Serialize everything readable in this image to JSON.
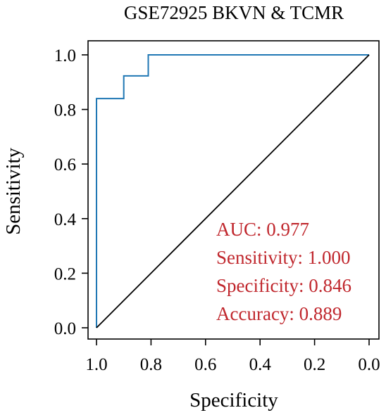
{
  "chart_data": {
    "type": "line",
    "title": "GSE72925 BKVN & TCMR",
    "xlabel": "Specificity",
    "ylabel": "Sensitivity",
    "xlim": [
      1.0,
      0.0
    ],
    "ylim": [
      0.0,
      1.0
    ],
    "x_reversed": true,
    "x_ticks": [
      1.0,
      0.8,
      0.6,
      0.4,
      0.2,
      0.0
    ],
    "x_tick_labels": [
      "1.0",
      "0.8",
      "0.6",
      "0.4",
      "0.2",
      "0.0"
    ],
    "y_ticks": [
      0.0,
      0.2,
      0.4,
      0.6,
      0.8,
      1.0
    ],
    "y_tick_labels": [
      "0.0",
      "0.2",
      "0.4",
      "0.6",
      "0.8",
      "1.0"
    ],
    "grid": false,
    "series": [
      {
        "color": "#1f77b4",
        "x": [
          1.0,
          1.0,
          0.9,
          0.9,
          0.81,
          0.81,
          0.0
        ],
        "y": [
          0.0,
          0.84,
          0.84,
          0.923,
          0.923,
          1.0,
          1.0
        ]
      },
      {
        "color": "#000000",
        "x": [
          1.0,
          0.0
        ],
        "y": [
          0.0,
          1.0
        ]
      }
    ],
    "annotations": {
      "color": "#c0272d",
      "position": "bottom-right",
      "lines": [
        "AUC: 0.977",
        "Sensitivity: 1.000",
        "Specificity: 0.846",
        "Accuracy: 0.889"
      ]
    }
  }
}
